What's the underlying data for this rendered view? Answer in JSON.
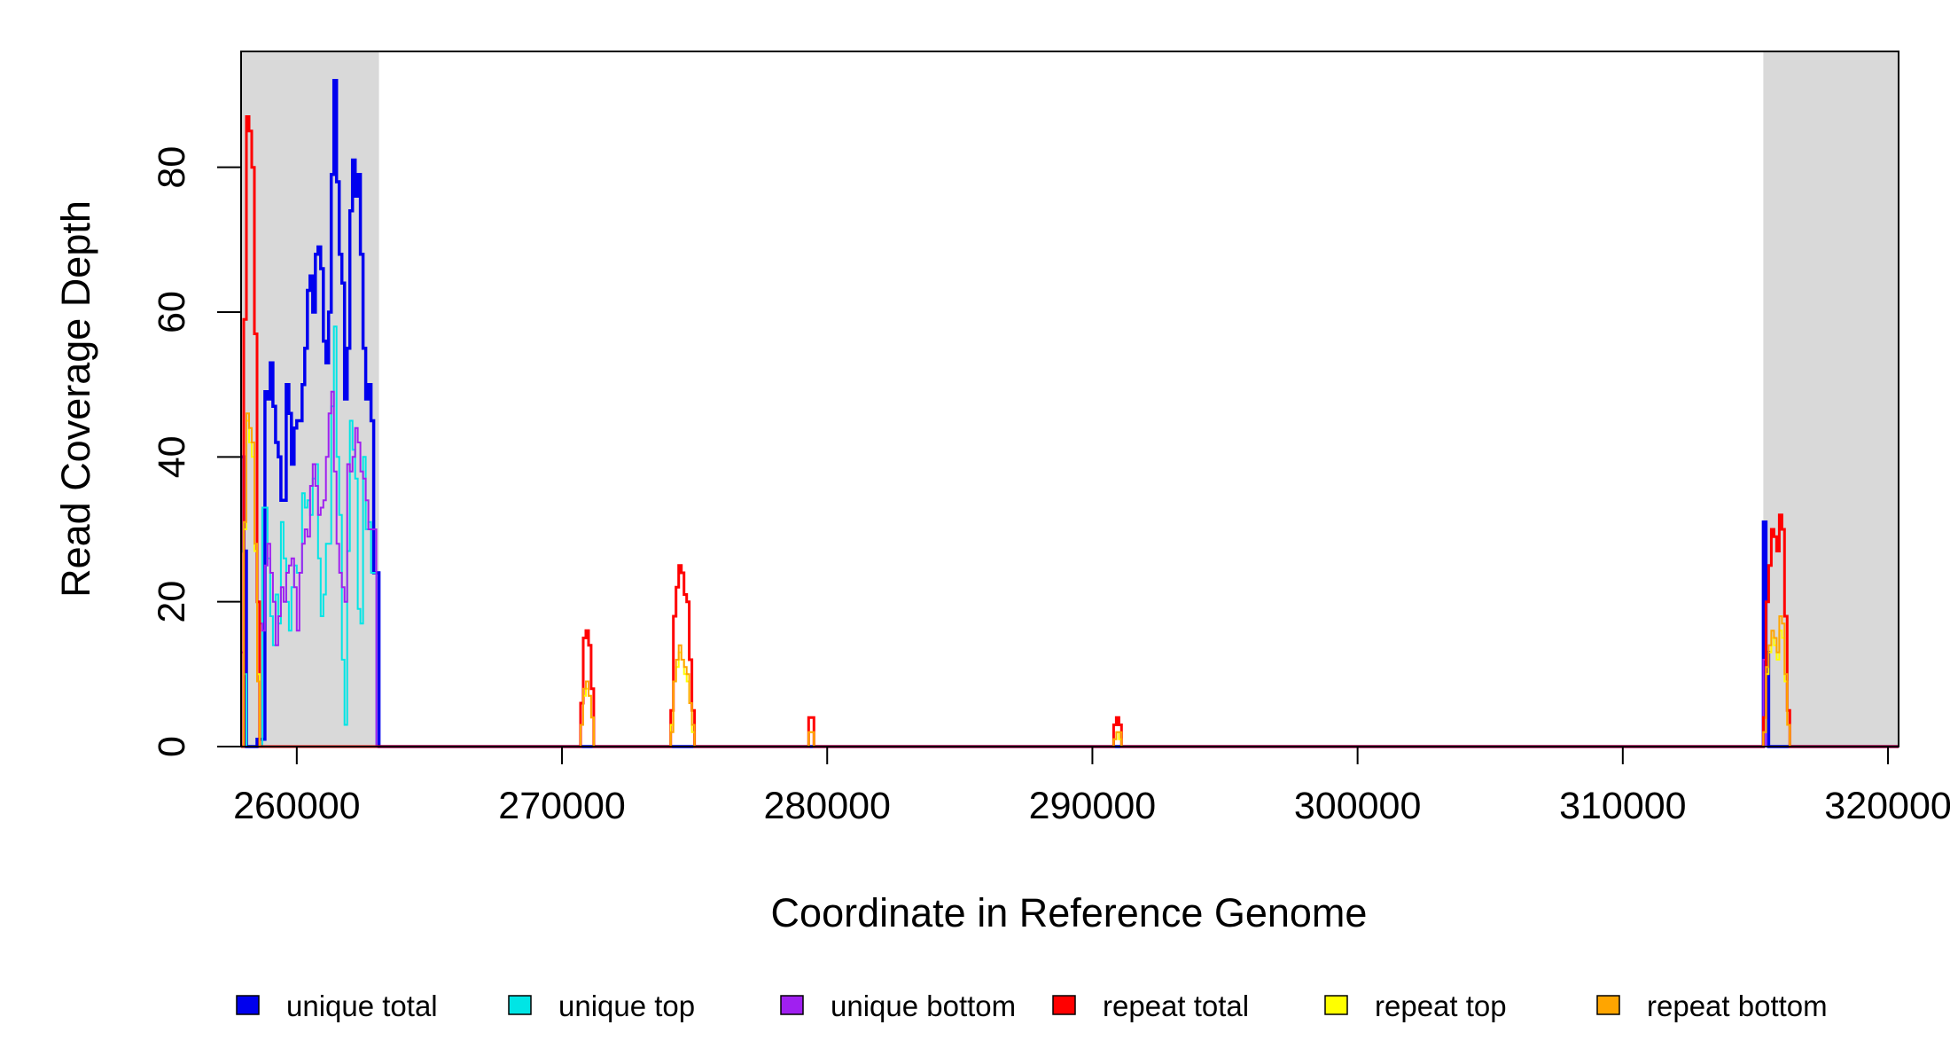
{
  "chart_data": {
    "type": "line",
    "title": "",
    "xlabel": "Coordinate in Reference Genome",
    "ylabel": "Read Coverage Depth",
    "xlim": [
      257900,
      320400
    ],
    "ylim": [
      0,
      96
    ],
    "x_ticks": [
      260000,
      270000,
      280000,
      290000,
      300000,
      310000,
      320000
    ],
    "y_ticks": [
      0,
      20,
      40,
      60,
      80
    ],
    "shaded_regions": [
      {
        "start": 257900,
        "end": 263100,
        "color": "#d9d9d9"
      },
      {
        "start": 315300,
        "end": 320400,
        "color": "#d9d9d9"
      }
    ],
    "legend_position": "bottom",
    "series": [
      {
        "name": "unique total",
        "color": "#0000ee",
        "points": [
          [
            257900,
            40
          ],
          [
            258000,
            27
          ],
          [
            258100,
            0
          ],
          [
            258400,
            0
          ],
          [
            258500,
            1
          ],
          [
            258700,
            1
          ],
          [
            258800,
            49
          ],
          [
            258900,
            48
          ],
          [
            259000,
            53
          ],
          [
            259100,
            47
          ],
          [
            259200,
            42
          ],
          [
            259300,
            40
          ],
          [
            259400,
            34
          ],
          [
            259600,
            50
          ],
          [
            259700,
            46
          ],
          [
            259800,
            39
          ],
          [
            259900,
            44
          ],
          [
            260000,
            45
          ],
          [
            260200,
            50
          ],
          [
            260300,
            55
          ],
          [
            260400,
            63
          ],
          [
            260500,
            65
          ],
          [
            260600,
            60
          ],
          [
            260700,
            68
          ],
          [
            260800,
            69
          ],
          [
            260900,
            66
          ],
          [
            261000,
            56
          ],
          [
            261100,
            53
          ],
          [
            261200,
            60
          ],
          [
            261300,
            79
          ],
          [
            261400,
            92
          ],
          [
            261500,
            78
          ],
          [
            261600,
            68
          ],
          [
            261700,
            64
          ],
          [
            261800,
            48
          ],
          [
            261900,
            55
          ],
          [
            262000,
            74
          ],
          [
            262100,
            81
          ],
          [
            262200,
            76
          ],
          [
            262300,
            79
          ],
          [
            262400,
            68
          ],
          [
            262500,
            55
          ],
          [
            262600,
            48
          ],
          [
            262700,
            50
          ],
          [
            262800,
            45
          ],
          [
            262900,
            24
          ],
          [
            263100,
            0
          ],
          [
            315200,
            0
          ],
          [
            315300,
            31
          ],
          [
            315400,
            13
          ],
          [
            315500,
            0
          ],
          [
            320400,
            0
          ]
        ]
      },
      {
        "name": "unique top",
        "color": "#00e5e5",
        "points": [
          [
            257900,
            27
          ],
          [
            258000,
            10
          ],
          [
            258100,
            0
          ],
          [
            258500,
            0
          ],
          [
            258700,
            33
          ],
          [
            258900,
            26
          ],
          [
            259000,
            18
          ],
          [
            259100,
            14
          ],
          [
            259200,
            21
          ],
          [
            259300,
            17
          ],
          [
            259400,
            31
          ],
          [
            259500,
            26
          ],
          [
            259600,
            20
          ],
          [
            259700,
            16
          ],
          [
            259800,
            22
          ],
          [
            259900,
            25
          ],
          [
            260000,
            24
          ],
          [
            260200,
            35
          ],
          [
            260300,
            33
          ],
          [
            260400,
            34
          ],
          [
            260500,
            32
          ],
          [
            260600,
            37
          ],
          [
            260700,
            39
          ],
          [
            260800,
            26
          ],
          [
            260900,
            18
          ],
          [
            261000,
            21
          ],
          [
            261100,
            28
          ],
          [
            261300,
            47
          ],
          [
            261400,
            58
          ],
          [
            261500,
            40
          ],
          [
            261600,
            32
          ],
          [
            261700,
            12
          ],
          [
            261800,
            3
          ],
          [
            261900,
            27
          ],
          [
            262000,
            45
          ],
          [
            262100,
            41
          ],
          [
            262200,
            37
          ],
          [
            262300,
            19
          ],
          [
            262400,
            17
          ],
          [
            262500,
            40
          ],
          [
            262600,
            30
          ],
          [
            262700,
            31
          ],
          [
            262800,
            24
          ],
          [
            263000,
            0
          ],
          [
            320400,
            0
          ]
        ]
      },
      {
        "name": "unique bottom",
        "color": "#a020f0",
        "points": [
          [
            257900,
            13
          ],
          [
            258000,
            0
          ],
          [
            258500,
            0
          ],
          [
            258600,
            17
          ],
          [
            258700,
            16
          ],
          [
            258800,
            25
          ],
          [
            258900,
            28
          ],
          [
            259000,
            24
          ],
          [
            259100,
            20
          ],
          [
            259200,
            14
          ],
          [
            259300,
            18
          ],
          [
            259400,
            22
          ],
          [
            259500,
            20
          ],
          [
            259600,
            24
          ],
          [
            259700,
            25
          ],
          [
            259800,
            26
          ],
          [
            259900,
            22
          ],
          [
            260000,
            16
          ],
          [
            260100,
            24
          ],
          [
            260200,
            28
          ],
          [
            260300,
            30
          ],
          [
            260400,
            29
          ],
          [
            260500,
            36
          ],
          [
            260600,
            39
          ],
          [
            260700,
            36
          ],
          [
            260800,
            32
          ],
          [
            260900,
            33
          ],
          [
            261000,
            34
          ],
          [
            261100,
            40
          ],
          [
            261200,
            46
          ],
          [
            261300,
            49
          ],
          [
            261400,
            38
          ],
          [
            261500,
            28
          ],
          [
            261600,
            24
          ],
          [
            261700,
            22
          ],
          [
            261800,
            20
          ],
          [
            261900,
            39
          ],
          [
            262000,
            38
          ],
          [
            262100,
            40
          ],
          [
            262200,
            44
          ],
          [
            262300,
            42
          ],
          [
            262400,
            38
          ],
          [
            262500,
            37
          ],
          [
            262600,
            34
          ],
          [
            262700,
            30
          ],
          [
            263000,
            0
          ],
          [
            315200,
            0
          ],
          [
            315300,
            12
          ],
          [
            315400,
            0
          ],
          [
            320400,
            0
          ]
        ]
      },
      {
        "name": "repeat total",
        "color": "#ff0000",
        "points": [
          [
            257900,
            0
          ],
          [
            258000,
            59
          ],
          [
            258100,
            87
          ],
          [
            258200,
            85
          ],
          [
            258300,
            80
          ],
          [
            258400,
            57
          ],
          [
            258500,
            20
          ],
          [
            258600,
            0
          ],
          [
            270600,
            0
          ],
          [
            270700,
            6
          ],
          [
            270800,
            15
          ],
          [
            270900,
            16
          ],
          [
            271000,
            14
          ],
          [
            271100,
            8
          ],
          [
            271200,
            0
          ],
          [
            274000,
            0
          ],
          [
            274100,
            5
          ],
          [
            274200,
            18
          ],
          [
            274300,
            22
          ],
          [
            274400,
            25
          ],
          [
            274500,
            24
          ],
          [
            274600,
            21
          ],
          [
            274700,
            20
          ],
          [
            274800,
            12
          ],
          [
            274900,
            5
          ],
          [
            275000,
            0
          ],
          [
            279200,
            0
          ],
          [
            279300,
            4
          ],
          [
            279400,
            4
          ],
          [
            279500,
            0
          ],
          [
            290700,
            0
          ],
          [
            290800,
            3
          ],
          [
            290900,
            4
          ],
          [
            291000,
            3
          ],
          [
            291100,
            0
          ],
          [
            315200,
            0
          ],
          [
            315300,
            4
          ],
          [
            315400,
            20
          ],
          [
            315500,
            25
          ],
          [
            315600,
            30
          ],
          [
            315700,
            29
          ],
          [
            315800,
            27
          ],
          [
            315900,
            32
          ],
          [
            316000,
            30
          ],
          [
            316100,
            18
          ],
          [
            316200,
            5
          ],
          [
            316300,
            0
          ],
          [
            320400,
            0
          ]
        ]
      },
      {
        "name": "repeat top",
        "color": "#ffff00",
        "points": [
          [
            257900,
            0
          ],
          [
            258000,
            30
          ],
          [
            258100,
            45
          ],
          [
            258200,
            42
          ],
          [
            258300,
            40
          ],
          [
            258400,
            27
          ],
          [
            258500,
            10
          ],
          [
            258600,
            0
          ],
          [
            270600,
            0
          ],
          [
            270700,
            3
          ],
          [
            270800,
            7
          ],
          [
            270900,
            8
          ],
          [
            271000,
            7
          ],
          [
            271100,
            4
          ],
          [
            271200,
            0
          ],
          [
            274000,
            0
          ],
          [
            274100,
            3
          ],
          [
            274200,
            9
          ],
          [
            274300,
            11
          ],
          [
            274400,
            13
          ],
          [
            274500,
            12
          ],
          [
            274600,
            10
          ],
          [
            274700,
            9
          ],
          [
            274800,
            6
          ],
          [
            274900,
            2
          ],
          [
            275000,
            0
          ],
          [
            279200,
            0
          ],
          [
            279300,
            2
          ],
          [
            279400,
            2
          ],
          [
            279500,
            0
          ],
          [
            290700,
            0
          ],
          [
            290800,
            1
          ],
          [
            290900,
            2
          ],
          [
            291000,
            1
          ],
          [
            291100,
            0
          ],
          [
            315200,
            0
          ],
          [
            315300,
            2
          ],
          [
            315400,
            10
          ],
          [
            315500,
            13
          ],
          [
            315600,
            15
          ],
          [
            315700,
            14
          ],
          [
            315800,
            12
          ],
          [
            315900,
            16
          ],
          [
            316000,
            15
          ],
          [
            316100,
            9
          ],
          [
            316200,
            3
          ],
          [
            316300,
            0
          ],
          [
            320400,
            0
          ]
        ]
      },
      {
        "name": "repeat bottom",
        "color": "#ffa500",
        "points": [
          [
            257900,
            0
          ],
          [
            258000,
            31
          ],
          [
            258100,
            46
          ],
          [
            258200,
            44
          ],
          [
            258300,
            42
          ],
          [
            258400,
            28
          ],
          [
            258500,
            9
          ],
          [
            258600,
            0
          ],
          [
            270600,
            0
          ],
          [
            270700,
            3
          ],
          [
            270800,
            8
          ],
          [
            270900,
            9
          ],
          [
            271000,
            7
          ],
          [
            271100,
            4
          ],
          [
            271200,
            0
          ],
          [
            274000,
            0
          ],
          [
            274100,
            2
          ],
          [
            274200,
            9
          ],
          [
            274300,
            12
          ],
          [
            274400,
            14
          ],
          [
            274500,
            12
          ],
          [
            274600,
            11
          ],
          [
            274700,
            10
          ],
          [
            274800,
            6
          ],
          [
            274900,
            3
          ],
          [
            275000,
            0
          ],
          [
            279200,
            0
          ],
          [
            279300,
            2
          ],
          [
            279400,
            2
          ],
          [
            279500,
            0
          ],
          [
            290700,
            0
          ],
          [
            290800,
            1
          ],
          [
            290900,
            2
          ],
          [
            291000,
            2
          ],
          [
            291100,
            0
          ],
          [
            315200,
            0
          ],
          [
            315300,
            2
          ],
          [
            315400,
            11
          ],
          [
            315500,
            14
          ],
          [
            315600,
            16
          ],
          [
            315700,
            15
          ],
          [
            315800,
            13
          ],
          [
            315900,
            18
          ],
          [
            316000,
            17
          ],
          [
            316100,
            10
          ],
          [
            316200,
            3
          ],
          [
            316300,
            0
          ],
          [
            320400,
            0
          ]
        ]
      }
    ]
  }
}
